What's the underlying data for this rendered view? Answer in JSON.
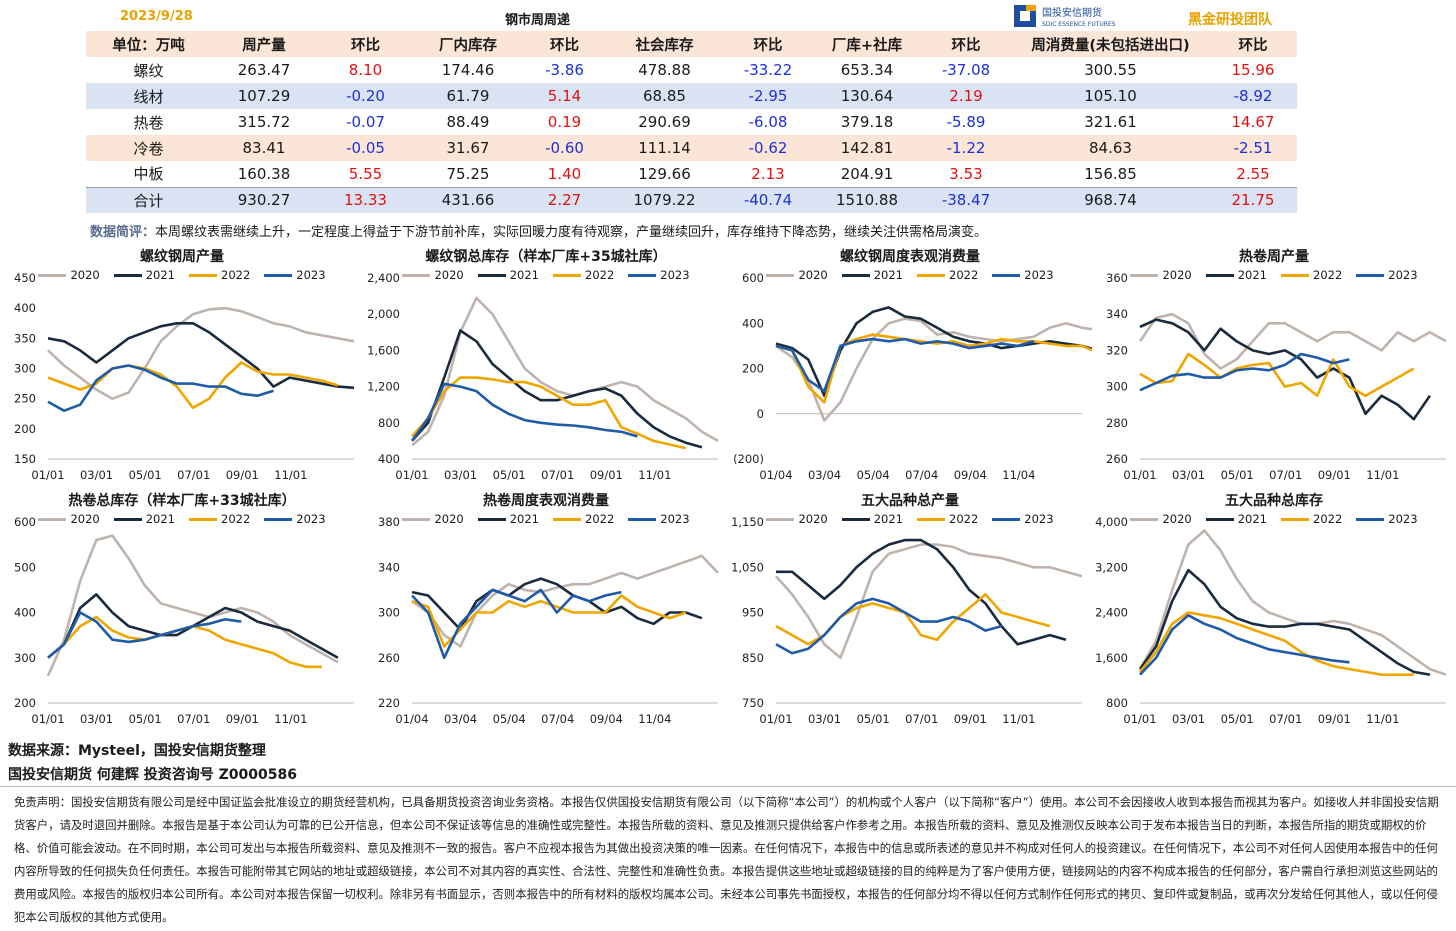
{
  "header": {
    "date": "2023/9/28",
    "title": "钢市周周递",
    "logo_text": "国投安信期货",
    "logo_sub": "SDIC ESSENCE FUTURES",
    "team": "黑金研投团队"
  },
  "table": {
    "headers": [
      "单位：万吨",
      "周产量",
      "环比",
      "厂内库存",
      "环比",
      "社会库存",
      "环比",
      "厂库+社库",
      "环比",
      "周消费量(未包括进出口)",
      "环比"
    ],
    "rows": [
      [
        "螺纹",
        "263.47",
        "8.10",
        "174.46",
        "-3.86",
        "478.88",
        "-33.22",
        "653.34",
        "-37.08",
        "300.55",
        "15.96"
      ],
      [
        "线材",
        "107.29",
        "-0.20",
        "61.79",
        "5.14",
        "68.85",
        "-2.95",
        "130.64",
        "2.19",
        "105.10",
        "-8.92"
      ],
      [
        "热卷",
        "315.72",
        "-0.07",
        "88.49",
        "0.19",
        "290.69",
        "-6.08",
        "379.18",
        "-5.89",
        "321.61",
        "14.67"
      ],
      [
        "冷卷",
        "83.41",
        "-0.05",
        "31.67",
        "-0.60",
        "111.14",
        "-0.62",
        "142.81",
        "-1.22",
        "84.63",
        "-2.51"
      ],
      [
        "中板",
        "160.38",
        "5.55",
        "75.25",
        "1.40",
        "129.66",
        "2.13",
        "204.91",
        "3.53",
        "156.85",
        "2.55"
      ],
      [
        "合计",
        "930.27",
        "13.33",
        "431.66",
        "2.27",
        "1079.22",
        "-40.74",
        "1510.88",
        "-38.47",
        "968.74",
        "21.75"
      ]
    ]
  },
  "comment": {
    "label": "数据简评：",
    "text": "本周螺纹表需继续上升，一定程度上得益于下游节前补库，实际回暖力度有待观察，产量继续回升，库存维持下降态势，继续关注供需格局演变。"
  },
  "colors": {
    "2020": "#bfb3ae",
    "2021": "#1a2b3d",
    "2022": "#f0a500",
    "2023": "#1f5ba8",
    "pos": "#e01010",
    "neg": "#1f2fd6"
  },
  "chart_data": [
    {
      "type": "line",
      "title": "螺纹钢周产量",
      "ylim": [
        150,
        450
      ],
      "yticks": [
        "450",
        "400",
        "350",
        "300",
        "250",
        "200",
        "150"
      ],
      "xticks": [
        "01/01",
        "03/01",
        "05/01",
        "07/01",
        "09/01",
        "11/01"
      ],
      "series": [
        {
          "name": "2020",
          "values": [
            330,
            305,
            285,
            265,
            250,
            260,
            300,
            345,
            370,
            390,
            398,
            400,
            395,
            385,
            375,
            370,
            360,
            355,
            350,
            345
          ]
        },
        {
          "name": "2021",
          "values": [
            350,
            345,
            330,
            310,
            330,
            350,
            360,
            370,
            375,
            375,
            360,
            340,
            320,
            300,
            270,
            285,
            280,
            275,
            270,
            268
          ]
        },
        {
          "name": "2022",
          "values": [
            285,
            275,
            265,
            275,
            300,
            305,
            300,
            290,
            270,
            235,
            250,
            285,
            310,
            295,
            290,
            290,
            285,
            280,
            272
          ]
        },
        {
          "name": "2023",
          "values": [
            245,
            230,
            240,
            280,
            300,
            305,
            298,
            285,
            275,
            275,
            270,
            270,
            258,
            255,
            263
          ]
        }
      ]
    },
    {
      "type": "line",
      "title": "螺纹钢总库存（样本厂库+35城社库）",
      "ylim": [
        400,
        2400
      ],
      "yticks": [
        "2,400",
        "2,000",
        "1,600",
        "1,200",
        "800",
        "400"
      ],
      "xticks": [
        "01/01",
        "03/01",
        "05/01",
        "07/01",
        "09/01",
        "11/01"
      ],
      "series": [
        {
          "name": "2020",
          "values": [
            550,
            700,
            1100,
            1800,
            2180,
            2000,
            1700,
            1400,
            1250,
            1150,
            1100,
            1150,
            1200,
            1250,
            1200,
            1050,
            950,
            850,
            700,
            600
          ]
        },
        {
          "name": "2021",
          "values": [
            600,
            800,
            1300,
            1820,
            1700,
            1450,
            1300,
            1150,
            1050,
            1050,
            1100,
            1150,
            1180,
            1100,
            900,
            750,
            650,
            580,
            530
          ]
        },
        {
          "name": "2022",
          "values": [
            650,
            850,
            1150,
            1300,
            1300,
            1280,
            1250,
            1250,
            1200,
            1100,
            1000,
            1000,
            1050,
            750,
            680,
            600,
            560,
            520
          ]
        },
        {
          "name": "2023",
          "values": [
            600,
            850,
            1230,
            1200,
            1150,
            1000,
            900,
            830,
            800,
            780,
            770,
            750,
            720,
            700,
            650
          ]
        }
      ]
    },
    {
      "type": "line",
      "title": "螺纹钢周度表观消费量",
      "ylim": [
        -200,
        600
      ],
      "yticks": [
        "600",
        "400",
        "200",
        "0",
        "(200)"
      ],
      "xticks": [
        "01/04",
        "03/04",
        "05/04",
        "07/04",
        "09/04",
        "11/04"
      ],
      "series": [
        {
          "name": "2020",
          "values": [
            300,
            250,
            150,
            -30,
            50,
            200,
            330,
            400,
            420,
            410,
            350,
            360,
            340,
            330,
            320,
            330,
            340,
            380,
            400,
            380,
            370
          ]
        },
        {
          "name": "2021",
          "values": [
            310,
            290,
            240,
            80,
            280,
            400,
            450,
            470,
            430,
            420,
            380,
            340,
            320,
            310,
            290,
            300,
            310,
            320,
            310,
            300,
            280
          ]
        },
        {
          "name": "2022",
          "values": [
            300,
            280,
            120,
            50,
            300,
            330,
            350,
            340,
            330,
            320,
            310,
            320,
            300,
            310,
            330,
            320,
            320,
            310,
            300,
            300,
            270
          ]
        },
        {
          "name": "2023",
          "values": [
            300,
            280,
            150,
            100,
            300,
            320,
            330,
            320,
            330,
            310,
            320,
            310,
            290,
            300,
            310,
            300,
            320
          ]
        }
      ]
    },
    {
      "type": "line",
      "title": "热卷周产量",
      "ylim": [
        260,
        360
      ],
      "yticks": [
        "360",
        "340",
        "320",
        "300",
        "280",
        "260"
      ],
      "xticks": [
        "01/01",
        "03/01",
        "05/01",
        "07/01",
        "09/01",
        "11/01"
      ],
      "series": [
        {
          "name": "2020",
          "values": [
            325,
            338,
            340,
            335,
            318,
            310,
            315,
            325,
            335,
            335,
            330,
            325,
            330,
            330,
            325,
            320,
            330,
            325,
            330,
            325
          ]
        },
        {
          "name": "2021",
          "values": [
            333,
            337,
            335,
            330,
            320,
            332,
            325,
            320,
            318,
            320,
            315,
            305,
            310,
            305,
            285,
            295,
            290,
            282,
            295
          ]
        },
        {
          "name": "2022",
          "values": [
            307,
            302,
            303,
            318,
            312,
            305,
            310,
            312,
            313,
            300,
            302,
            295,
            315,
            300,
            295,
            300,
            305,
            310
          ]
        },
        {
          "name": "2023",
          "values": [
            298,
            302,
            306,
            307,
            305,
            305,
            309,
            310,
            309,
            312,
            318,
            316,
            313,
            315
          ]
        }
      ]
    },
    {
      "type": "line",
      "title": "热卷总库存（样本厂库+33城社库）",
      "ylim": [
        200,
        600
      ],
      "yticks": [
        "600",
        "500",
        "400",
        "300",
        "200"
      ],
      "xticks": [
        "01/01",
        "03/01",
        "05/01",
        "07/01",
        "09/01",
        "11/01"
      ],
      "series": [
        {
          "name": "2020",
          "values": [
            260,
            340,
            470,
            560,
            570,
            520,
            460,
            420,
            410,
            400,
            390,
            400,
            410,
            400,
            380,
            350,
            330,
            310,
            290
          ]
        },
        {
          "name": "2021",
          "values": [
            300,
            330,
            410,
            440,
            400,
            370,
            360,
            350,
            350,
            370,
            390,
            410,
            400,
            380,
            370,
            360,
            340,
            320,
            300
          ]
        },
        {
          "name": "2022",
          "values": [
            300,
            330,
            370,
            390,
            360,
            345,
            340,
            350,
            360,
            370,
            360,
            340,
            330,
            320,
            310,
            290,
            280,
            280
          ]
        },
        {
          "name": "2023",
          "values": [
            300,
            330,
            400,
            380,
            340,
            335,
            340,
            350,
            360,
            370,
            375,
            385,
            380
          ]
        }
      ]
    },
    {
      "type": "line",
      "title": "热卷周度表观消费量",
      "ylim": [
        220,
        380
      ],
      "yticks": [
        "380",
        "340",
        "300",
        "260",
        "220"
      ],
      "xticks": [
        "01/04",
        "03/04",
        "05/04",
        "07/04",
        "09/04",
        "11/04"
      ],
      "series": [
        {
          "name": "2020",
          "values": [
            310,
            300,
            280,
            270,
            300,
            315,
            325,
            320,
            318,
            322,
            325,
            325,
            330,
            335,
            330,
            335,
            340,
            345,
            350,
            335
          ]
        },
        {
          "name": "2021",
          "values": [
            318,
            315,
            300,
            285,
            310,
            320,
            315,
            325,
            330,
            325,
            315,
            310,
            300,
            305,
            295,
            290,
            300,
            300,
            295
          ]
        },
        {
          "name": "2022",
          "values": [
            310,
            305,
            270,
            285,
            300,
            300,
            310,
            305,
            310,
            305,
            300,
            300,
            300,
            315,
            305,
            300,
            295,
            300
          ]
        },
        {
          "name": "2023",
          "values": [
            315,
            300,
            260,
            290,
            305,
            320,
            315,
            310,
            320,
            300,
            315,
            310,
            315,
            318
          ]
        }
      ]
    },
    {
      "type": "line",
      "title": "五大品种总产量",
      "ylim": [
        750,
        1150
      ],
      "yticks": [
        "1,150",
        "1,050",
        "950",
        "850",
        "750"
      ],
      "xticks": [
        "01/01",
        "03/01",
        "05/01",
        "07/01",
        "09/01",
        "11/01"
      ],
      "series": [
        {
          "name": "2020",
          "values": [
            1030,
            990,
            940,
            880,
            850,
            940,
            1040,
            1080,
            1090,
            1100,
            1100,
            1095,
            1080,
            1075,
            1070,
            1060,
            1050,
            1050,
            1040,
            1030
          ]
        },
        {
          "name": "2021",
          "values": [
            1040,
            1040,
            1010,
            980,
            1010,
            1050,
            1080,
            1100,
            1110,
            1110,
            1090,
            1050,
            1000,
            970,
            920,
            880,
            890,
            900,
            890
          ]
        },
        {
          "name": "2022",
          "values": [
            920,
            900,
            880,
            900,
            940,
            960,
            970,
            960,
            950,
            900,
            890,
            930,
            960,
            990,
            950,
            940,
            930,
            920
          ]
        },
        {
          "name": "2023",
          "values": [
            880,
            860,
            870,
            900,
            940,
            970,
            980,
            970,
            950,
            930,
            930,
            940,
            930,
            910,
            920
          ]
        }
      ]
    },
    {
      "type": "line",
      "title": "五大品种总库存",
      "ylim": [
        800,
        4000
      ],
      "yticks": [
        "4,000",
        "3,200",
        "2,400",
        "1,600",
        "800"
      ],
      "xticks": [
        "01/01",
        "03/01",
        "05/01",
        "07/01",
        "09/01",
        "11/01"
      ],
      "series": [
        {
          "name": "2020",
          "values": [
            1400,
            1900,
            2800,
            3600,
            3850,
            3500,
            3000,
            2600,
            2400,
            2300,
            2200,
            2200,
            2250,
            2200,
            2100,
            2000,
            1800,
            1600,
            1400,
            1300
          ]
        },
        {
          "name": "2021",
          "values": [
            1400,
            1800,
            2600,
            3150,
            2900,
            2500,
            2300,
            2200,
            2150,
            2150,
            2200,
            2200,
            2150,
            2100,
            1900,
            1700,
            1500,
            1350,
            1300
          ]
        },
        {
          "name": "2022",
          "values": [
            1350,
            1700,
            2200,
            2400,
            2350,
            2300,
            2200,
            2100,
            2000,
            1900,
            1700,
            1550,
            1450,
            1400,
            1350,
            1300,
            1300,
            1300
          ]
        },
        {
          "name": "2023",
          "values": [
            1300,
            1600,
            2100,
            2350,
            2200,
            2100,
            1950,
            1850,
            1750,
            1700,
            1650,
            1600,
            1550,
            1520
          ]
        }
      ]
    }
  ],
  "footer": {
    "source": "数据来源：Mysteel，国投安信期货整理",
    "author": "国投安信期货 何建辉 投资咨询号 Z0000586",
    "disclaimer": "免责声明：国投安信期货有限公司是经中国证监会批准设立的期货经营机构，已具备期货投资咨询业务资格。本报告仅供国投安信期货有限公司（以下简称“本公司”）的机构或个人客户（以下简称“客户”）使用。本公司不会因接收人收到本报告而视其为客户。如接收人并非国投安信期货客户，请及时退回并删除。本报告是基于本公司认为可靠的已公开信息，但本公司不保证该等信息的准确性或完整性。本报告所载的资料、意见及推测只提供给客户作参考之用。本报告所载的资料、意见及推测仅反映本公司于发布本报告当日的判断，本报告所指的期货或期权的价格、价值可能会波动。在不同时期，本公司可发出与本报告所载资料、意见及推测不一致的报告。客户不应视本报告为其做出投资决策的唯一因素。在任何情况下，本报告中的信息或所表述的意见并不构成对任何人的投资建议。在任何情况下，本公司不对任何人因使用本报告中的任何内容所导致的任何损失负任何责任。本报告可能附带其它网站的地址或超级链接，本公司不对其内容的真实性、合法性、完整性和准确性负责。本报告提供这些地址或超级链接的目的纯粹是为了客户使用方便，链接网站的内容不构成本报告的任何部分，客户需自行承担浏览这些网站的费用或风险。本报告的版权归本公司所有。本公司对本报告保留一切权利。除非另有书面显示，否则本报告中的所有材料的版权均属本公司。未经本公司事先书面授权，本报告的任何部分均不得以任何方式制作任何形式的拷贝、复印件或复制品，或再次分发给任何其他人，或以任何侵犯本公司版权的其他方式使用。"
  }
}
